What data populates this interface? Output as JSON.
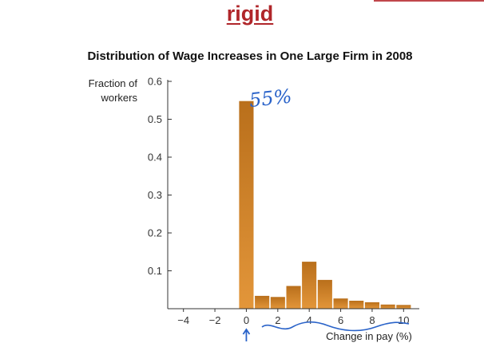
{
  "slide": {
    "heading": "rigid"
  },
  "chart_data": {
    "type": "bar",
    "title": "Distribution of Wage Increases in One Large Firm in 2008",
    "ylabel_lines": [
      "Fraction of",
      "workers"
    ],
    "xlabel": "Change in pay (%)",
    "x": [
      0,
      1,
      2,
      3,
      4,
      5,
      6,
      7,
      8,
      9,
      10
    ],
    "values": [
      0.548,
      0.034,
      0.031,
      0.06,
      0.124,
      0.076,
      0.027,
      0.021,
      0.017,
      0.011,
      0.01
    ],
    "xlim": [
      -5,
      11
    ],
    "ylim": [
      0,
      0.6
    ],
    "x_ticks": [
      "−4",
      "−2",
      "0",
      "2",
      "4",
      "6",
      "8",
      "10"
    ],
    "x_tick_values": [
      -4,
      -2,
      0,
      2,
      4,
      6,
      8,
      10
    ],
    "y_ticks": [
      "0.1",
      "0.2",
      "0.3",
      "0.4",
      "0.5",
      "0.6"
    ],
    "y_tick_values": [
      0.1,
      0.2,
      0.3,
      0.4,
      0.5,
      0.6
    ],
    "grid": false,
    "bar_color_top": "#b96f1b",
    "bar_color_bottom": "#e3963a"
  },
  "annotations": {
    "handwritten_note": "55%",
    "ink_color": "#2a63c9"
  }
}
